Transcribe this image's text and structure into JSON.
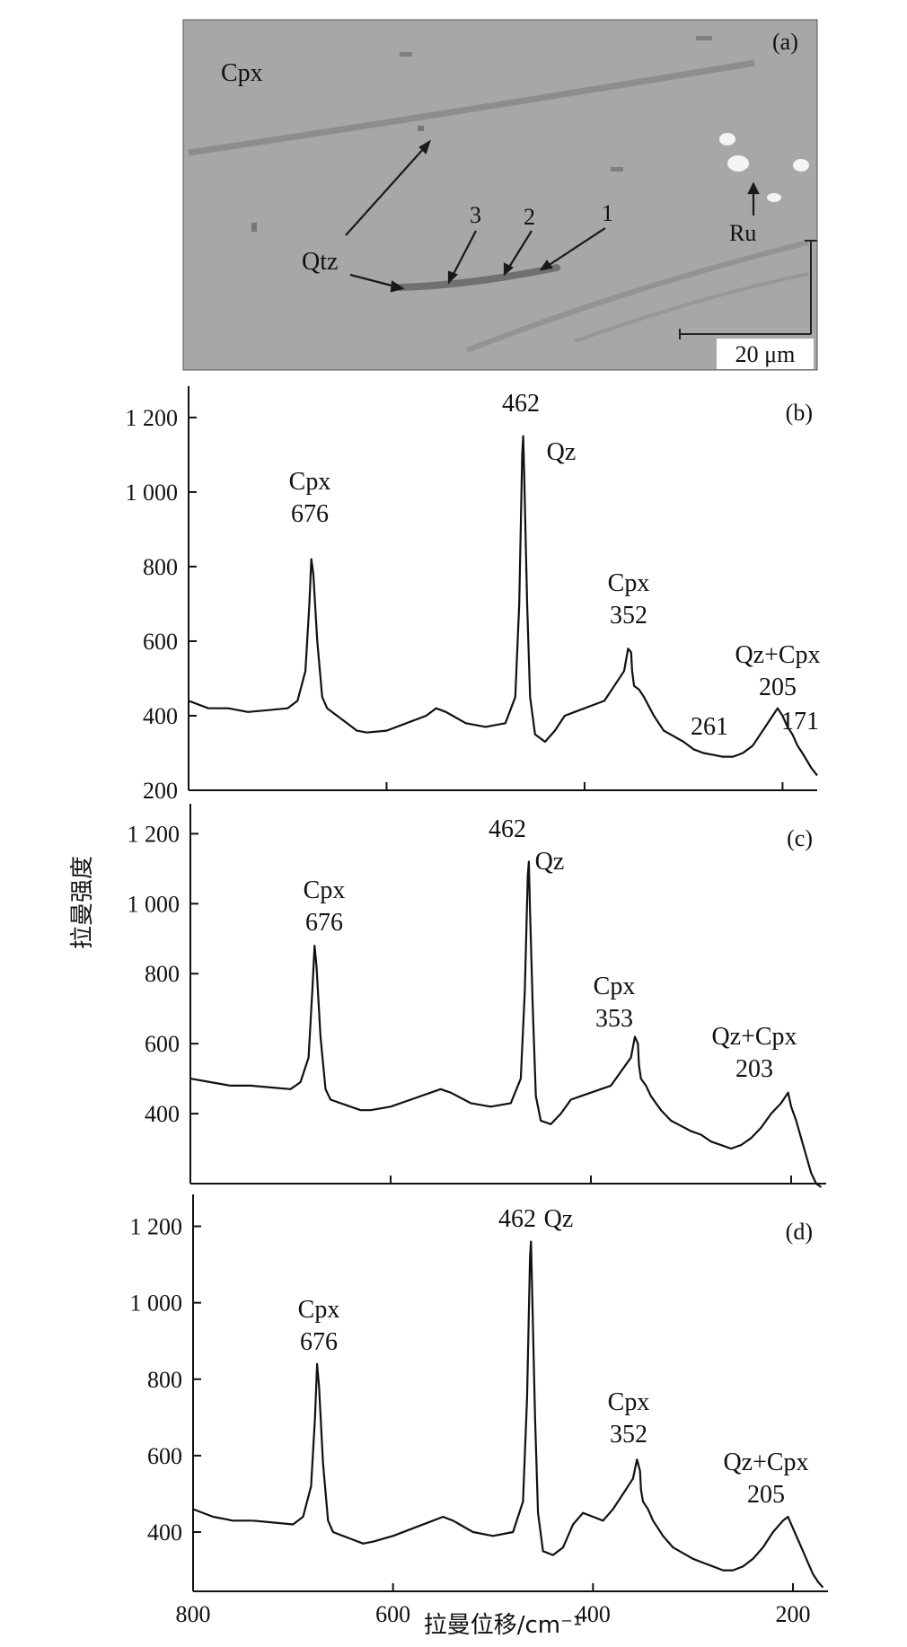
{
  "micrograph": {
    "panel_label": "(a)",
    "labels": [
      "Cpx",
      "Qtz",
      "Ru"
    ],
    "spot_numbers": [
      "1",
      "2",
      "3"
    ],
    "scale_bar": "20 μm"
  },
  "shared_axis": {
    "ylabel": "拉曼强度",
    "xlabel": "拉曼位移/cm⁻¹"
  },
  "chart_data": [
    {
      "type": "line",
      "panel_label": "(b)",
      "xlim": [
        800,
        165
      ],
      "ylim": [
        200,
        1260
      ],
      "x_ticks": [
        800,
        600,
        400,
        200
      ],
      "x_tick_labels": [],
      "y_ticks": [
        200,
        400,
        600,
        800,
        1000,
        1200
      ],
      "y_tick_labels": [
        "200",
        "400",
        "600",
        "800",
        "1 000",
        "1 200"
      ],
      "annotations": [
        {
          "lines": [
            "Cpx",
            "676"
          ],
          "x": 676
        },
        {
          "lines": [
            "462"
          ],
          "x": 462
        },
        {
          "lines": [
            "Qz"
          ],
          "x": 462
        },
        {
          "lines": [
            "Cpx",
            "352"
          ],
          "x": 352
        },
        {
          "lines": [
            "Qz+Cpx",
            "205"
          ],
          "x": 205
        },
        {
          "lines": [
            "261"
          ],
          "x": 261
        },
        {
          "lines": [
            "171"
          ],
          "x": 171
        }
      ],
      "series": [
        {
          "x": [
            800,
            780,
            760,
            740,
            720,
            700,
            690,
            682,
            678,
            676,
            674,
            670,
            665,
            660,
            650,
            640,
            630,
            620,
            600,
            580,
            560,
            550,
            540,
            520,
            500,
            480,
            470,
            466,
            463,
            462,
            461,
            458,
            455,
            450,
            440,
            430,
            420,
            410,
            400,
            390,
            380,
            370,
            360,
            356,
            353,
            352,
            350,
            345,
            340,
            330,
            320,
            300,
            290,
            280,
            270,
            261,
            250,
            240,
            230,
            220,
            210,
            205,
            200,
            195,
            190,
            185,
            180,
            171,
            165
          ],
          "y": [
            440,
            420,
            420,
            410,
            415,
            420,
            440,
            520,
            700,
            820,
            780,
            600,
            450,
            420,
            400,
            380,
            360,
            355,
            360,
            380,
            400,
            420,
            410,
            380,
            370,
            380,
            450,
            700,
            1100,
            1150,
            1050,
            700,
            450,
            350,
            330,
            360,
            400,
            410,
            420,
            430,
            440,
            480,
            520,
            580,
            570,
            520,
            480,
            470,
            450,
            400,
            360,
            330,
            310,
            300,
            295,
            290,
            290,
            300,
            320,
            360,
            400,
            420,
            400,
            370,
            350,
            320,
            300,
            260,
            240
          ]
        }
      ]
    },
    {
      "type": "line",
      "panel_label": "(c)",
      "xlim": [
        800,
        165
      ],
      "ylim": [
        200,
        1260
      ],
      "x_ticks": [
        800,
        600,
        400,
        200
      ],
      "x_tick_labels": [],
      "y_ticks": [
        400,
        600,
        800,
        1000,
        1200
      ],
      "y_tick_labels": [
        "400",
        "600",
        "800",
        "1 000",
        "1 200"
      ],
      "annotations": [
        {
          "lines": [
            "Cpx",
            "676"
          ],
          "x": 676
        },
        {
          "lines": [
            "462"
          ],
          "x": 462
        },
        {
          "lines": [
            "Qz"
          ],
          "x": 462
        },
        {
          "lines": [
            "Cpx",
            "353"
          ],
          "x": 353
        },
        {
          "lines": [
            "Qz+Cpx",
            "203"
          ],
          "x": 203
        }
      ],
      "series": [
        {
          "x": [
            800,
            780,
            760,
            740,
            720,
            700,
            690,
            682,
            678,
            676,
            674,
            670,
            665,
            660,
            650,
            640,
            630,
            620,
            600,
            580,
            560,
            550,
            540,
            520,
            500,
            480,
            470,
            466,
            463,
            462,
            461,
            458,
            455,
            450,
            440,
            430,
            420,
            410,
            400,
            390,
            380,
            370,
            360,
            356,
            353,
            352,
            350,
            345,
            340,
            330,
            320,
            300,
            290,
            280,
            270,
            260,
            250,
            240,
            230,
            220,
            210,
            203,
            200,
            195,
            190,
            185,
            180,
            175,
            170
          ],
          "y": [
            500,
            490,
            480,
            480,
            475,
            470,
            490,
            560,
            760,
            880,
            820,
            620,
            470,
            440,
            430,
            420,
            410,
            410,
            420,
            440,
            460,
            470,
            460,
            430,
            420,
            430,
            500,
            750,
            1080,
            1120,
            1000,
            700,
            450,
            380,
            370,
            400,
            440,
            450,
            460,
            470,
            480,
            520,
            560,
            620,
            600,
            540,
            500,
            480,
            450,
            410,
            380,
            350,
            340,
            320,
            310,
            300,
            310,
            330,
            360,
            400,
            430,
            460,
            420,
            380,
            330,
            280,
            230,
            200,
            190
          ]
        }
      ]
    },
    {
      "type": "line",
      "panel_label": "(d)",
      "xlim": [
        800,
        165
      ],
      "ylim": [
        245,
        1260
      ],
      "x_ticks": [
        800,
        600,
        400,
        200
      ],
      "x_tick_labels": [
        "800",
        "600",
        "400",
        "200"
      ],
      "y_ticks": [
        400,
        600,
        800,
        1000,
        1200
      ],
      "y_tick_labels": [
        "400",
        "600",
        "800",
        "1 000",
        "1 200"
      ],
      "annotations": [
        {
          "lines": [
            "462"
          ],
          "x": 462
        },
        {
          "lines": [
            "Qz"
          ],
          "x": 462
        },
        {
          "lines": [
            "Cpx",
            "676"
          ],
          "x": 676
        },
        {
          "lines": [
            "Cpx",
            "352"
          ],
          "x": 352
        },
        {
          "lines": [
            "Qz+Cpx",
            "205"
          ],
          "x": 205
        }
      ],
      "series": [
        {
          "x": [
            800,
            780,
            760,
            740,
            720,
            700,
            690,
            682,
            678,
            676,
            674,
            670,
            665,
            660,
            650,
            640,
            630,
            620,
            600,
            580,
            560,
            550,
            540,
            520,
            500,
            480,
            470,
            466,
            463,
            462,
            461,
            458,
            455,
            450,
            440,
            430,
            420,
            410,
            400,
            390,
            380,
            370,
            360,
            356,
            353,
            352,
            350,
            345,
            340,
            330,
            320,
            300,
            290,
            280,
            270,
            260,
            250,
            240,
            230,
            220,
            210,
            205,
            200,
            195,
            190,
            185,
            180,
            175,
            170
          ],
          "y": [
            460,
            440,
            430,
            430,
            425,
            420,
            440,
            520,
            700,
            840,
            780,
            580,
            430,
            400,
            390,
            380,
            370,
            375,
            390,
            410,
            430,
            440,
            430,
            400,
            390,
            400,
            480,
            750,
            1120,
            1160,
            1050,
            700,
            450,
            350,
            340,
            360,
            420,
            450,
            440,
            430,
            460,
            500,
            540,
            590,
            560,
            510,
            480,
            460,
            430,
            390,
            360,
            330,
            320,
            310,
            300,
            300,
            310,
            330,
            360,
            400,
            430,
            440,
            410,
            380,
            350,
            320,
            290,
            270,
            255
          ]
        }
      ]
    }
  ]
}
